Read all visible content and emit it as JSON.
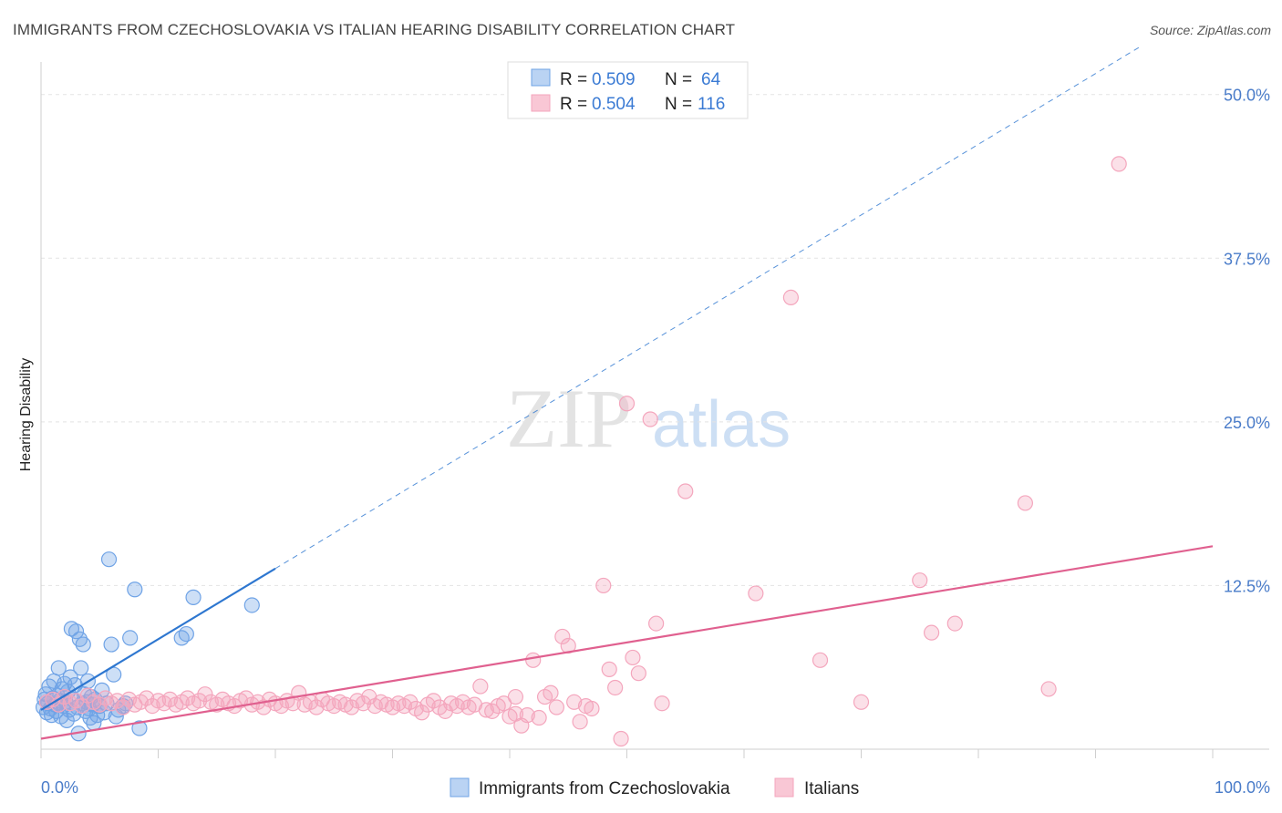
{
  "header": {
    "title": "IMMIGRANTS FROM CZECHOSLOVAKIA VS ITALIAN HEARING DISABILITY CORRELATION CHART",
    "source": "Source: ZipAtlas.com"
  },
  "watermark": {
    "zip": "ZIP",
    "atlas": "atlas"
  },
  "legend": {
    "r_label": "R =",
    "n_label": "N =",
    "entries": [
      {
        "r": "0.509",
        "n": "64",
        "color": "#a9c8f0"
      },
      {
        "r": "0.504",
        "n": "116",
        "color": "#f7b9cb"
      }
    ]
  },
  "bottom_legend": [
    "Immigrants from Czechoslovakia",
    "Italians"
  ],
  "chart_data": {
    "type": "scatter",
    "title": "IMMIGRANTS FROM CZECHOSLOVAKIA VS ITALIAN HEARING DISABILITY CORRELATION CHART",
    "xlabel": "",
    "ylabel": "Hearing Disability",
    "xlim": [
      0,
      100
    ],
    "ylim": [
      0,
      52
    ],
    "x_tick_labels": [
      "0.0%",
      "100.0%"
    ],
    "y_ticks": [
      12.5,
      25.0,
      37.5,
      50.0
    ],
    "y_tick_labels": [
      "12.5%",
      "25.0%",
      "37.5%",
      "50.0%"
    ],
    "grid": true,
    "legend_position": "top-center",
    "series": [
      {
        "name": "Immigrants from Czechoslovakia",
        "color": "#6fa3e6",
        "line_color": "#2e77d0",
        "trend": {
          "x0": 0,
          "y0": 3.0,
          "x1": 20,
          "y1": 13.8,
          "dashed_to": 94
        },
        "points": [
          [
            0.2,
            3.2
          ],
          [
            0.3,
            3.8
          ],
          [
            0.4,
            4.2
          ],
          [
            0.5,
            2.8
          ],
          [
            0.6,
            3.5
          ],
          [
            0.7,
            4.8
          ],
          [
            0.8,
            3.1
          ],
          [
            0.9,
            2.6
          ],
          [
            1.0,
            3.9
          ],
          [
            1.1,
            5.2
          ],
          [
            1.2,
            3.4
          ],
          [
            1.3,
            2.9
          ],
          [
            1.4,
            4.1
          ],
          [
            1.5,
            6.2
          ],
          [
            1.6,
            3.7
          ],
          [
            1.7,
            2.5
          ],
          [
            1.8,
            4.6
          ],
          [
            1.9,
            3.3
          ],
          [
            2.0,
            5.0
          ],
          [
            2.1,
            3.6
          ],
          [
            2.2,
            2.2
          ],
          [
            2.3,
            4.4
          ],
          [
            2.4,
            3.0
          ],
          [
            2.5,
            5.5
          ],
          [
            2.6,
            9.2
          ],
          [
            2.7,
            3.8
          ],
          [
            2.8,
            2.7
          ],
          [
            2.9,
            4.9
          ],
          [
            3.0,
            9.0
          ],
          [
            3.1,
            3.2
          ],
          [
            3.2,
            1.2
          ],
          [
            3.3,
            8.4
          ],
          [
            3.4,
            6.2
          ],
          [
            3.5,
            3.5
          ],
          [
            3.6,
            8.0
          ],
          [
            3.7,
            4.2
          ],
          [
            3.8,
            2.9
          ],
          [
            3.9,
            3.6
          ],
          [
            4.0,
            5.2
          ],
          [
            4.1,
            3.1
          ],
          [
            4.2,
            2.4
          ],
          [
            4.3,
            4.0
          ],
          [
            4.4,
            3.4
          ],
          [
            4.5,
            2.0
          ],
          [
            4.6,
            3.8
          ],
          [
            4.8,
            2.6
          ],
          [
            5.0,
            3.3
          ],
          [
            5.2,
            4.5
          ],
          [
            5.4,
            2.8
          ],
          [
            5.6,
            3.5
          ],
          [
            5.8,
            14.5
          ],
          [
            6.0,
            8.0
          ],
          [
            6.2,
            5.7
          ],
          [
            6.4,
            2.5
          ],
          [
            6.6,
            3.0
          ],
          [
            7.0,
            3.3
          ],
          [
            7.2,
            3.5
          ],
          [
            7.6,
            8.5
          ],
          [
            8.0,
            12.2
          ],
          [
            8.4,
            1.6
          ],
          [
            12.0,
            8.5
          ],
          [
            12.4,
            8.8
          ],
          [
            13.0,
            11.6
          ],
          [
            18.0,
            11.0
          ]
        ]
      },
      {
        "name": "Italians",
        "color": "#f4a6bd",
        "line_color": "#e0608f",
        "trend": {
          "x0": 0,
          "y0": 0.8,
          "x1": 100,
          "y1": 15.5
        },
        "points": [
          [
            0.5,
            3.6
          ],
          [
            1.0,
            3.8
          ],
          [
            1.5,
            3.4
          ],
          [
            2.0,
            4.0
          ],
          [
            2.5,
            3.5
          ],
          [
            3.0,
            3.7
          ],
          [
            3.5,
            3.3
          ],
          [
            4.0,
            4.1
          ],
          [
            4.5,
            3.6
          ],
          [
            5.0,
            3.4
          ],
          [
            5.5,
            3.9
          ],
          [
            6.0,
            3.5
          ],
          [
            6.5,
            3.7
          ],
          [
            7.0,
            3.2
          ],
          [
            7.5,
            3.8
          ],
          [
            8.0,
            3.4
          ],
          [
            8.5,
            3.6
          ],
          [
            9.0,
            3.9
          ],
          [
            9.5,
            3.3
          ],
          [
            10.0,
            3.7
          ],
          [
            10.5,
            3.5
          ],
          [
            11.0,
            3.8
          ],
          [
            11.5,
            3.4
          ],
          [
            12.0,
            3.6
          ],
          [
            12.5,
            3.9
          ],
          [
            13.0,
            3.5
          ],
          [
            13.5,
            3.7
          ],
          [
            14.0,
            4.2
          ],
          [
            14.5,
            3.6
          ],
          [
            15.0,
            3.4
          ],
          [
            15.5,
            3.8
          ],
          [
            16.0,
            3.5
          ],
          [
            16.5,
            3.3
          ],
          [
            17.0,
            3.7
          ],
          [
            17.5,
            3.9
          ],
          [
            18.0,
            3.4
          ],
          [
            18.5,
            3.6
          ],
          [
            19.0,
            3.2
          ],
          [
            19.5,
            3.8
          ],
          [
            20.0,
            3.5
          ],
          [
            20.5,
            3.3
          ],
          [
            21.0,
            3.7
          ],
          [
            21.5,
            3.5
          ],
          [
            22.0,
            4.3
          ],
          [
            22.5,
            3.4
          ],
          [
            23.0,
            3.6
          ],
          [
            23.5,
            3.2
          ],
          [
            24.0,
            3.8
          ],
          [
            24.5,
            3.5
          ],
          [
            25.0,
            3.3
          ],
          [
            25.5,
            3.6
          ],
          [
            26.0,
            3.4
          ],
          [
            26.5,
            3.2
          ],
          [
            27.0,
            3.7
          ],
          [
            27.5,
            3.5
          ],
          [
            28.0,
            4.0
          ],
          [
            28.5,
            3.3
          ],
          [
            29.0,
            3.6
          ],
          [
            29.5,
            3.4
          ],
          [
            30.0,
            3.2
          ],
          [
            30.5,
            3.5
          ],
          [
            31.0,
            3.3
          ],
          [
            31.5,
            3.6
          ],
          [
            32.0,
            3.1
          ],
          [
            32.5,
            2.8
          ],
          [
            33.0,
            3.4
          ],
          [
            33.5,
            3.7
          ],
          [
            34.0,
            3.2
          ],
          [
            34.5,
            2.9
          ],
          [
            35.0,
            3.5
          ],
          [
            35.5,
            3.3
          ],
          [
            36.0,
            3.6
          ],
          [
            36.5,
            3.2
          ],
          [
            37.0,
            3.4
          ],
          [
            37.5,
            4.8
          ],
          [
            38.0,
            3.0
          ],
          [
            38.5,
            2.9
          ],
          [
            39.0,
            3.3
          ],
          [
            39.5,
            3.5
          ],
          [
            40.0,
            2.5
          ],
          [
            40.5,
            2.7
          ],
          [
            41.0,
            1.8
          ],
          [
            41.5,
            2.6
          ],
          [
            42.0,
            6.8
          ],
          [
            42.5,
            2.4
          ],
          [
            43.0,
            4.0
          ],
          [
            43.5,
            4.3
          ],
          [
            44.0,
            3.2
          ],
          [
            44.5,
            8.6
          ],
          [
            45.0,
            7.9
          ],
          [
            45.5,
            3.6
          ],
          [
            46.0,
            2.1
          ],
          [
            46.5,
            3.3
          ],
          [
            47.0,
            3.1
          ],
          [
            48.0,
            12.5
          ],
          [
            48.5,
            6.1
          ],
          [
            49.0,
            4.7
          ],
          [
            49.5,
            0.8
          ],
          [
            50.5,
            7.0
          ],
          [
            50.0,
            26.4
          ],
          [
            51.0,
            5.8
          ],
          [
            52.0,
            25.2
          ],
          [
            52.5,
            9.6
          ],
          [
            53.0,
            3.5
          ],
          [
            55.0,
            19.7
          ],
          [
            61.0,
            11.9
          ],
          [
            64.0,
            34.5
          ],
          [
            66.5,
            6.8
          ],
          [
            70.0,
            3.6
          ],
          [
            75.0,
            12.9
          ],
          [
            76.0,
            8.9
          ],
          [
            78.0,
            9.6
          ],
          [
            84.0,
            18.8
          ],
          [
            86.0,
            4.6
          ],
          [
            92.0,
            44.7
          ],
          [
            40.5,
            4.0
          ]
        ]
      }
    ]
  }
}
